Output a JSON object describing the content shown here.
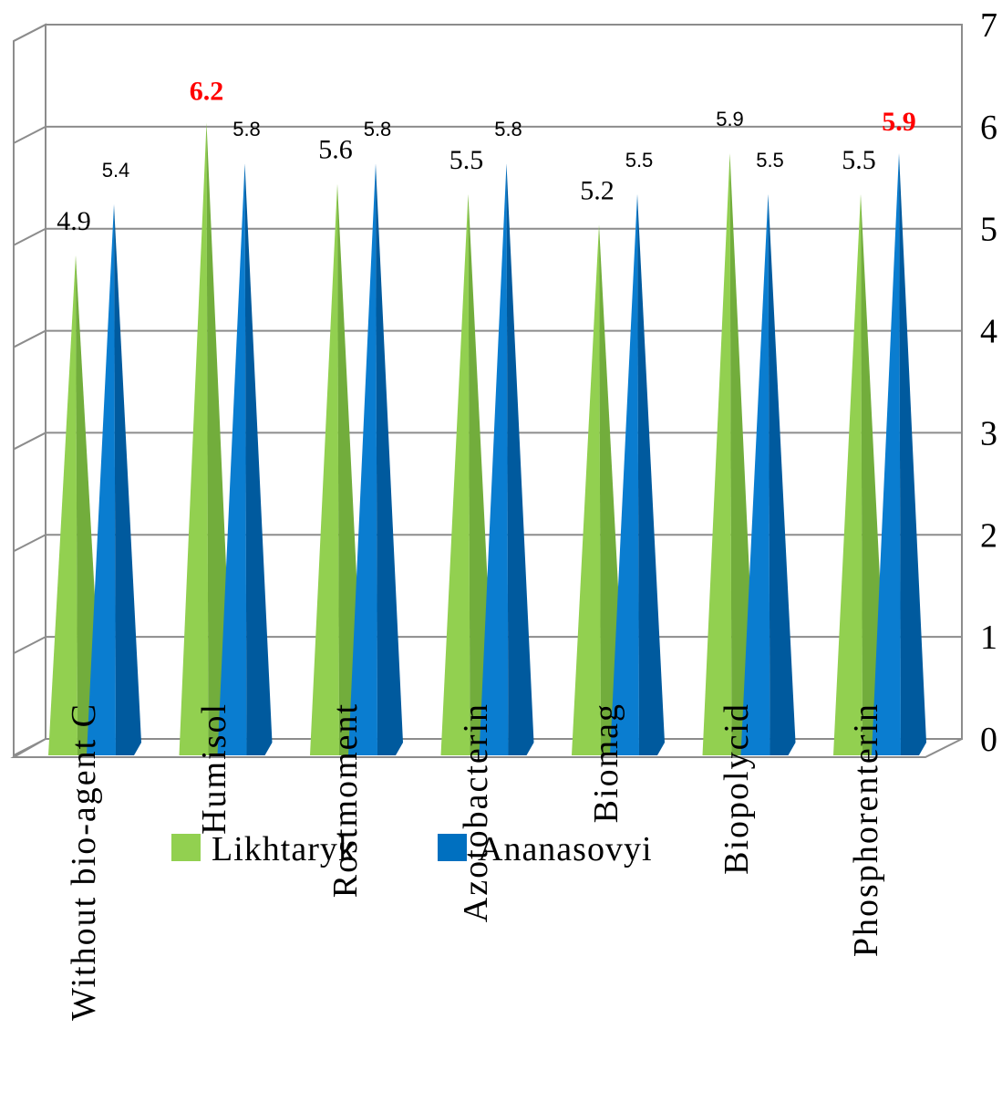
{
  "chart_data": {
    "type": "bar",
    "shape": "cone",
    "categories": [
      "Without bio-agent C",
      "Humisol",
      "Rostmoment",
      "Azotobacterin",
      "Biomag",
      "Biopolycid",
      "Phosphorenterin"
    ],
    "series": [
      {
        "name": "Likhtaryk",
        "color": "#92d050",
        "values": [
          4.9,
          6.2,
          5.6,
          5.5,
          5.2,
          5.9,
          5.5
        ],
        "labels": [
          "4.9",
          "6.2",
          "5.6",
          "5.5",
          "5.2",
          "5.9",
          "5.5"
        ]
      },
      {
        "name": "Ananasovyi",
        "color": "#0070c0",
        "values": [
          5.4,
          5.8,
          5.8,
          5.8,
          5.5,
          5.5,
          5.9
        ],
        "labels": [
          "5.4",
          "5.8",
          "5.8",
          "5.8",
          "5.5",
          "5.5",
          "5.9"
        ]
      }
    ],
    "highlight_color": "#ff0000",
    "highlighted_labels": [
      {
        "series": 0,
        "index": 1
      },
      {
        "series": 1,
        "index": 6
      }
    ],
    "y_ticks": [
      "0",
      "1",
      "2",
      "3",
      "4",
      "5",
      "6",
      "7"
    ],
    "ylim": [
      0,
      7
    ],
    "y_axis_side": "right",
    "grid": true,
    "legend_placement": "bottom"
  }
}
